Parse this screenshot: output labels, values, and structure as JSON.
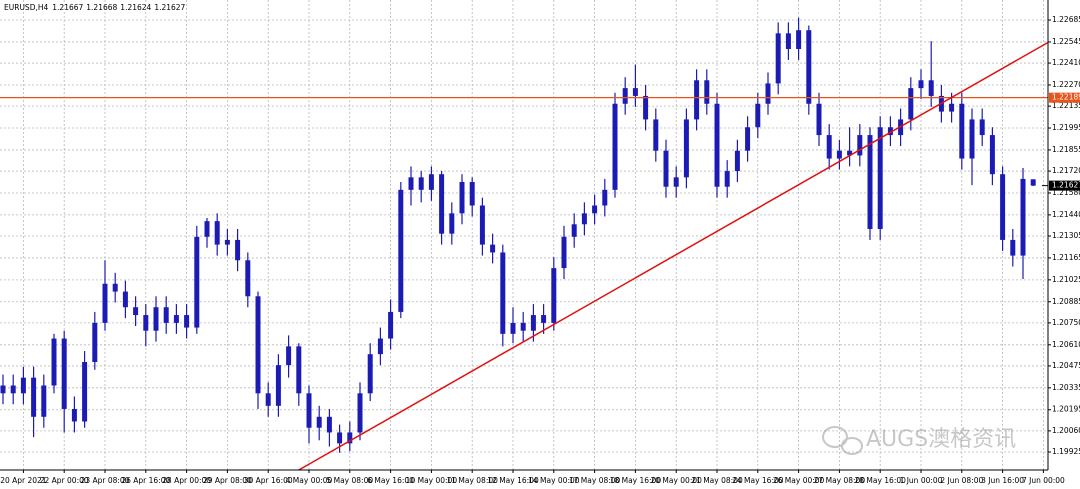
{
  "chart_data": {
    "type": "candlestick",
    "symbol": "EURUSD,H4",
    "color": "#1c1cb4",
    "open": [
      1.203,
      1.2035,
      1.203,
      1.204,
      1.2015,
      1.2035,
      1.2065,
      1.202,
      1.2012,
      1.205,
      1.2075,
      1.21,
      1.2095,
      1.2085,
      1.208,
      1.207,
      1.2085,
      1.2075,
      1.208,
      1.2072,
      1.213,
      1.214,
      1.2125,
      1.2128,
      1.2115,
      1.2092,
      1.203,
      1.2022,
      1.2048,
      1.206,
      1.203,
      1.2008,
      1.2015,
      1.2005,
      1.1998,
      1.2005,
      1.203,
      1.2055,
      1.2065,
      1.2082,
      1.216,
      1.2168,
      1.216,
      1.217,
      1.2132,
      1.2145,
      1.2165,
      1.215,
      1.2125,
      1.212,
      1.2068,
      1.2075,
      1.207,
      1.208,
      1.2075,
      1.211,
      1.213,
      1.2138,
      1.2145,
      1.215,
      1.216,
      1.2215,
      1.2225,
      1.222,
      1.2205,
      1.2185,
      1.2162,
      1.2168,
      1.2205,
      1.223,
      1.2215,
      1.2162,
      1.2172,
      1.2185,
      1.22,
      1.2215,
      1.2228,
      1.226,
      1.225,
      1.2262,
      1.2215,
      1.2195,
      1.218,
      1.2185,
      1.2182,
      1.2195,
      1.2135,
      1.22,
      1.2195,
      1.2205,
      1.2225,
      1.223,
      1.222,
      1.221,
      1.2215,
      1.218,
      1.2205,
      1.2195,
      1.217,
      1.2128,
      1.2118,
      1.21667
    ],
    "high": [
      1.2042,
      1.2042,
      1.2047,
      1.2047,
      1.2042,
      1.2068,
      1.207,
      1.2028,
      1.2057,
      1.2082,
      1.2115,
      1.2107,
      1.2102,
      1.2092,
      1.2087,
      1.2092,
      1.2092,
      1.2087,
      1.2087,
      1.2137,
      1.2142,
      1.2145,
      1.2135,
      1.2135,
      1.212,
      1.2095,
      1.2037,
      1.2055,
      1.2067,
      1.2062,
      1.2035,
      1.2022,
      1.202,
      1.201,
      1.2012,
      1.2037,
      1.2062,
      1.2072,
      1.209,
      1.2165,
      1.2175,
      1.2172,
      1.2175,
      1.2172,
      1.2152,
      1.217,
      1.2168,
      1.2155,
      1.2132,
      1.2125,
      1.2085,
      1.2082,
      1.2087,
      1.2087,
      1.2117,
      1.2137,
      1.2145,
      1.2152,
      1.2157,
      1.2167,
      1.2222,
      1.2232,
      1.224,
      1.2227,
      1.2212,
      1.2192,
      1.2175,
      1.2212,
      1.2237,
      1.2237,
      1.2222,
      1.2179,
      1.2192,
      1.2207,
      1.2222,
      1.2235,
      1.2267,
      1.2267,
      1.227,
      1.2265,
      1.2222,
      1.2202,
      1.2192,
      1.22,
      1.2202,
      1.22,
      1.2207,
      1.2207,
      1.2212,
      1.2232,
      1.2237,
      1.2255,
      1.2227,
      1.2222,
      1.2222,
      1.2212,
      1.2212,
      1.22,
      1.2175,
      1.2135,
      1.2174,
      1.21668
    ],
    "low": [
      1.2023,
      1.2023,
      1.2023,
      1.2002,
      1.2008,
      1.203,
      1.2005,
      1.2005,
      1.2008,
      1.2045,
      1.207,
      1.2088,
      1.2078,
      1.2073,
      1.206,
      1.2063,
      1.2068,
      1.2068,
      1.2065,
      1.2068,
      1.2123,
      1.2118,
      1.2118,
      1.2108,
      1.2085,
      1.202,
      1.2015,
      1.2015,
      1.204,
      1.2022,
      1.1998,
      1.2,
      1.1996,
      1.1992,
      1.1993,
      1.2,
      1.2025,
      1.2048,
      1.2058,
      1.2078,
      1.215,
      1.2152,
      1.2153,
      1.2125,
      1.2125,
      1.2138,
      1.2143,
      1.2118,
      1.2113,
      1.206,
      1.2062,
      1.2063,
      1.2063,
      1.2068,
      1.207,
      1.2103,
      1.2123,
      1.2131,
      1.2138,
      1.2143,
      1.2155,
      1.2208,
      1.2213,
      1.2198,
      1.2178,
      1.2155,
      1.2155,
      1.2161,
      1.2198,
      1.2208,
      1.2155,
      1.2155,
      1.2165,
      1.2178,
      1.2193,
      1.2208,
      1.2221,
      1.2243,
      1.2243,
      1.2208,
      1.2188,
      1.2173,
      1.2173,
      1.2175,
      1.2175,
      1.2128,
      1.2128,
      1.2188,
      1.2188,
      1.2198,
      1.2218,
      1.2213,
      1.2203,
      1.2203,
      1.2173,
      1.2163,
      1.2188,
      1.2163,
      1.2121,
      1.2111,
      1.2103,
      1.21624
    ],
    "close": [
      1.2035,
      1.203,
      1.204,
      1.2015,
      1.2035,
      1.2065,
      1.202,
      1.2012,
      1.205,
      1.2075,
      1.21,
      1.2095,
      1.2085,
      1.208,
      1.207,
      1.2085,
      1.2075,
      1.208,
      1.2072,
      1.213,
      1.214,
      1.2125,
      1.2128,
      1.2115,
      1.2092,
      1.203,
      1.2022,
      1.2048,
      1.206,
      1.203,
      1.2008,
      1.2015,
      1.2005,
      1.1998,
      1.2005,
      1.203,
      1.2055,
      1.2065,
      1.2082,
      1.216,
      1.2168,
      1.216,
      1.217,
      1.2132,
      1.2145,
      1.2165,
      1.215,
      1.2125,
      1.212,
      1.2068,
      1.2075,
      1.207,
      1.208,
      1.2075,
      1.211,
      1.213,
      1.2138,
      1.2145,
      1.215,
      1.216,
      1.2215,
      1.2225,
      1.222,
      1.2205,
      1.2185,
      1.2162,
      1.2168,
      1.2205,
      1.223,
      1.2215,
      1.2162,
      1.2172,
      1.2185,
      1.22,
      1.2215,
      1.2228,
      1.226,
      1.225,
      1.2262,
      1.2215,
      1.2195,
      1.218,
      1.2185,
      1.2182,
      1.2195,
      1.2135,
      1.22,
      1.2195,
      1.2205,
      1.2225,
      1.223,
      1.222,
      1.221,
      1.2215,
      1.218,
      1.2205,
      1.2195,
      1.217,
      1.2128,
      1.2118,
      1.2167,
      1.21627
    ],
    "ylim": [
      1.1981,
      1.22813
    ],
    "yticks": [
      1.22685,
      1.22545,
      {
        "value": 1.2241,
        "label": "1.22410"
      },
      {
        "value": 1.2227,
        "label": "1.22270"
      },
      1.22135,
      1.21995,
      1.21855,
      {
        "value": 1.2172,
        "label": "1.21720"
      },
      {
        "value": 1.2158,
        "label": "1.21580"
      },
      {
        "value": 1.2144,
        "label": "1.21440"
      },
      1.21305,
      1.21165,
      1.21025,
      1.20885,
      {
        "value": 1.2075,
        "label": "1.20750"
      },
      {
        "value": 1.2061,
        "label": "1.20610"
      },
      1.20475,
      1.20335,
      1.20195,
      {
        "value": 1.2006,
        "label": "1.20060"
      },
      1.19925
    ],
    "xticks": [
      {
        "value": 2,
        "label": "20 Apr 2021"
      },
      {
        "value": 6,
        "label": "22 Apr 00:00"
      },
      {
        "value": 10,
        "label": "23 Apr 08:00"
      },
      {
        "value": 14,
        "label": "26 Apr 16:00"
      },
      {
        "value": 18,
        "label": "28 Apr 00:00"
      },
      {
        "value": 22,
        "label": "29 Apr 08:00"
      },
      {
        "value": 26,
        "label": "30 Apr 16:00"
      },
      {
        "value": 30,
        "label": "4 May 00:00"
      },
      {
        "value": 34,
        "label": "5 May 08:00"
      },
      {
        "value": 38,
        "label": "6 May 16:00"
      },
      {
        "value": 42,
        "label": "10 May 00:00"
      },
      {
        "value": 46,
        "label": "11 May 08:00"
      },
      {
        "value": 50,
        "label": "12 May 16:00"
      },
      {
        "value": 54,
        "label": "14 May 00:00"
      },
      {
        "value": 58,
        "label": "17 May 08:00"
      },
      {
        "value": 62,
        "label": "18 May 16:00"
      },
      {
        "value": 66,
        "label": "20 May 00:00"
      },
      {
        "value": 70,
        "label": "21 May 08:00"
      },
      {
        "value": 74,
        "label": "24 May 16:00"
      },
      {
        "value": 78,
        "label": "26 May 00:00"
      },
      {
        "value": 82,
        "label": "27 May 08:00"
      },
      {
        "value": 86,
        "label": "28 May 16:00"
      },
      {
        "value": 90,
        "label": "1 Jun 00:00"
      },
      {
        "value": 94,
        "label": "2 Jun 08:00"
      },
      {
        "value": 98,
        "label": "3 Jun 16:00"
      },
      {
        "value": 102,
        "label": "7 Jun 00:00"
      }
    ],
    "grid": true,
    "hline": {
      "value": 1.22189,
      "color": "#e8541c"
    },
    "trendline": {
      "x": [
        29,
        102.4
      ],
      "y": [
        1.1981,
        1.2254
      ],
      "color": "#e01010"
    },
    "watermark": "AUGS澳格资讯"
  }
}
